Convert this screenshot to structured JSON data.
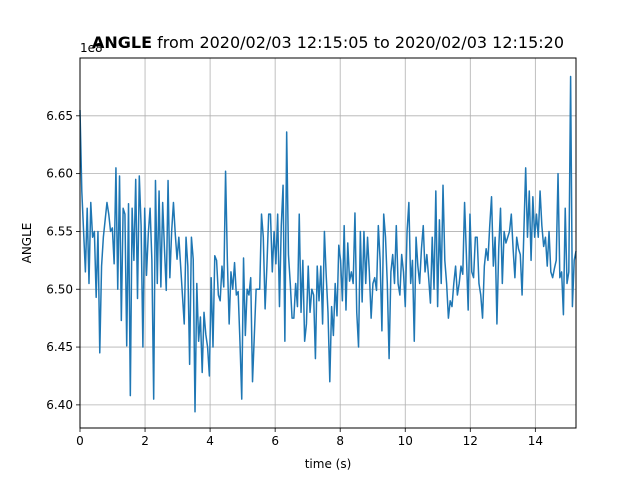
{
  "chart_data": {
    "type": "line",
    "title_bold": "ANGLE",
    "title_rest": " from 2020/02/03 12:15:05 to 2020/02/03 12:15:20",
    "xlabel": "time (s)",
    "ylabel": "ANGLE",
    "offset_label": "1e8",
    "xlim": [
      0,
      15.25
    ],
    "ylim": [
      6.38,
      6.7
    ],
    "grid": true,
    "xticks": [
      0,
      2,
      4,
      6,
      8,
      10,
      12,
      14
    ],
    "yticks": [
      6.4,
      6.45,
      6.5,
      6.55,
      6.6,
      6.65
    ],
    "ytick_labels": [
      "6.40",
      "6.45",
      "6.50",
      "6.55",
      "6.60",
      "6.65"
    ],
    "line_color": "#1f77b4",
    "series": [
      {
        "y": [
          6.655,
          6.585,
          6.55,
          6.515,
          6.57,
          6.505,
          6.575,
          6.545,
          6.55,
          6.493,
          6.55,
          6.445,
          6.52,
          6.545,
          6.56,
          6.575,
          6.565,
          6.55,
          6.553,
          6.522,
          6.605,
          6.5,
          6.598,
          6.473,
          6.57,
          6.565,
          6.451,
          6.574,
          6.408,
          6.57,
          6.525,
          6.595,
          6.492,
          6.598,
          6.555,
          6.45,
          6.57,
          6.512,
          6.548,
          6.57,
          6.525,
          6.405,
          6.594,
          6.505,
          6.585,
          6.502,
          6.575,
          6.535,
          6.499,
          6.594,
          6.51,
          6.55,
          6.575,
          6.548,
          6.526,
          6.545,
          6.52,
          6.495,
          6.47,
          6.545,
          6.52,
          6.435,
          6.545,
          6.526,
          6.394,
          6.505,
          6.455,
          6.476,
          6.428,
          6.48,
          6.461,
          6.45,
          6.425,
          6.51,
          6.45,
          6.529,
          6.525,
          6.495,
          6.49,
          6.52,
          6.502,
          6.602,
          6.525,
          6.47,
          6.515,
          6.5,
          6.523,
          6.495,
          6.498,
          6.455,
          6.405,
          6.527,
          6.46,
          6.5,
          6.495,
          6.51,
          6.42,
          6.46,
          6.5,
          6.5,
          6.5,
          6.565,
          6.545,
          6.483,
          6.52,
          6.565,
          6.565,
          6.515,
          6.55,
          6.522,
          6.565,
          6.485,
          6.555,
          6.59,
          6.455,
          6.636,
          6.53,
          6.505,
          6.475,
          6.475,
          6.505,
          6.485,
          6.565,
          6.48,
          6.525,
          6.455,
          6.47,
          6.52,
          6.48,
          6.5,
          6.495,
          6.44,
          6.52,
          6.49,
          6.52,
          6.47,
          6.55,
          6.512,
          6.48,
          6.42,
          6.485,
          6.46,
          6.505,
          6.477,
          6.538,
          6.525,
          6.49,
          6.555,
          6.482,
          6.54,
          6.507,
          6.515,
          6.505,
          6.566,
          6.48,
          6.45,
          6.55,
          6.489,
          6.55,
          6.505,
          6.545,
          6.515,
          6.475,
          6.505,
          6.51,
          6.499,
          6.555,
          6.525,
          6.464,
          6.565,
          6.545,
          6.505,
          6.44,
          6.515,
          6.53,
          6.505,
          6.555,
          6.505,
          6.495,
          6.53,
          6.515,
          6.485,
          6.55,
          6.575,
          6.505,
          6.525,
          6.455,
          6.545,
          6.52,
          6.505,
          6.535,
          6.555,
          6.515,
          6.53,
          6.51,
          6.488,
          6.545,
          6.5,
          6.585,
          6.485,
          6.56,
          6.505,
          6.59,
          6.525,
          6.505,
          6.475,
          6.49,
          6.485,
          6.505,
          6.52,
          6.495,
          6.505,
          6.52,
          6.513,
          6.575,
          6.53,
          6.482,
          6.565,
          6.515,
          6.51,
          6.545,
          6.545,
          6.505,
          6.495,
          6.475,
          6.52,
          6.535,
          6.525,
          6.555,
          6.58,
          6.52,
          6.545,
          6.47,
          6.535,
          6.57,
          6.505,
          6.55,
          6.54,
          6.545,
          6.55,
          6.565,
          6.535,
          6.51,
          6.545,
          6.535,
          6.53,
          6.495,
          6.55,
          6.605,
          6.545,
          6.585,
          6.525,
          6.58,
          6.545,
          6.565,
          6.545,
          6.585,
          6.555,
          6.537,
          6.545,
          6.52,
          6.55,
          6.515,
          6.51,
          6.518,
          6.525,
          6.6,
          6.51,
          6.515,
          6.478,
          6.57,
          6.505,
          6.515,
          6.684,
          6.485,
          6.525,
          6.533
        ],
        "x_start": 0,
        "x_end": 15.25
      }
    ]
  }
}
